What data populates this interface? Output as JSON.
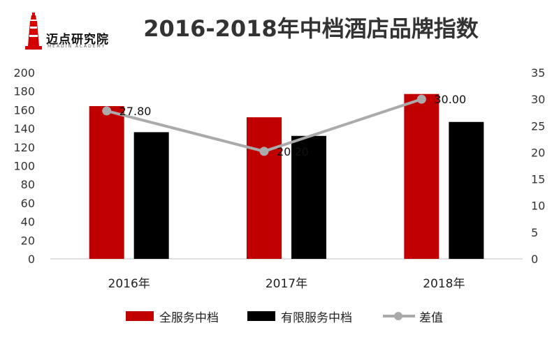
{
  "logo": {
    "name": "迈点研究院",
    "subtitle": "MEADIN ACADEMY"
  },
  "chart_data": {
    "type": "bar",
    "title": "2016-2018年中档酒店品牌指数",
    "categories": [
      "2016年",
      "2017年",
      "2018年"
    ],
    "series": [
      {
        "name": "全服务中档",
        "type": "bar",
        "axis": "left",
        "color": "#c00000",
        "values": [
          164,
          152,
          177
        ]
      },
      {
        "name": "有限服务中档",
        "type": "bar",
        "axis": "left",
        "color": "#000000",
        "values": [
          136,
          132,
          147
        ]
      },
      {
        "name": "差值",
        "type": "line",
        "axis": "right",
        "color": "#aaaaaa",
        "values": [
          27.8,
          20.2,
          30.0
        ],
        "labels": [
          "27.80",
          "20.20",
          "30.00"
        ]
      }
    ],
    "y_left": {
      "min": 0,
      "max": 200,
      "step": 20
    },
    "y_right": {
      "min": 0,
      "max": 35,
      "step": 5
    },
    "grid": false,
    "legend": "bottom"
  }
}
